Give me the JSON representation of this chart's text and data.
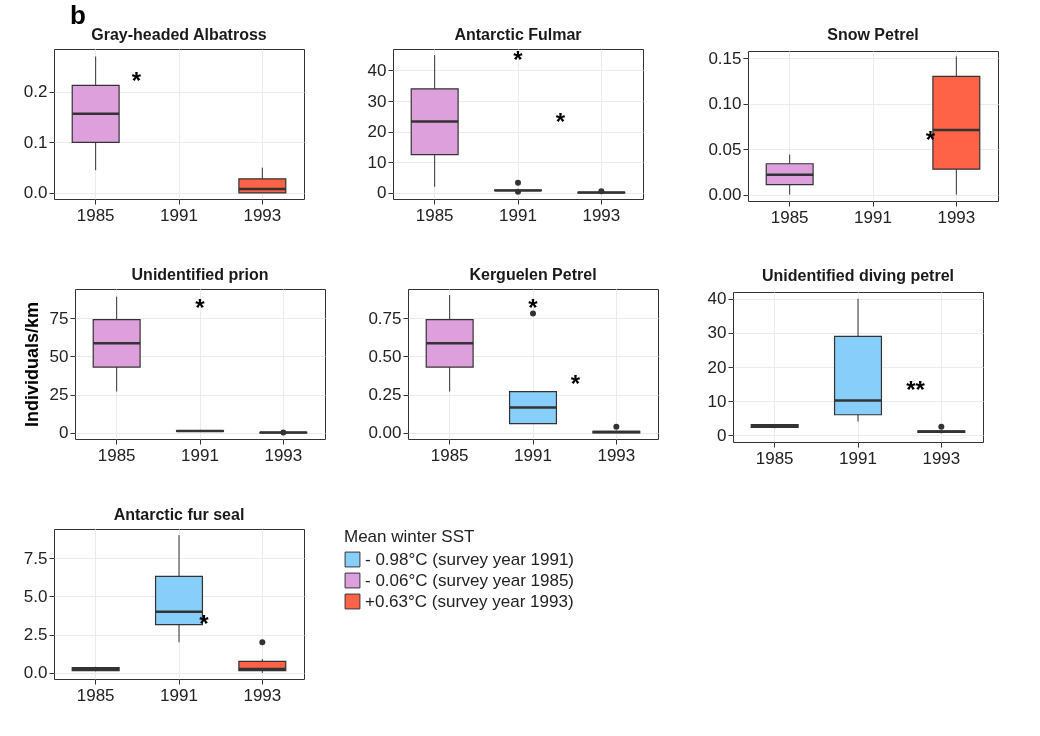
{
  "chart_data": [
    {
      "type": "box",
      "title": "Gray-headed Albatross",
      "categories": [
        "1985",
        "1991",
        "1993"
      ],
      "ylim": [
        -0.012,
        0.285
      ],
      "yticks": [
        {
          "value": 0,
          "label": "0.0"
        },
        0.1,
        0.2
      ],
      "grid": true,
      "annotations": [
        "b",
        "*"
      ],
      "series": [
        {
          "color": "#dda0dd",
          "boxes": [
            {
              "low": 0.045,
              "q1": 0.1,
              "median": 0.157,
              "q3": 0.213,
              "high": 0.27
            },
            null,
            null
          ]
        },
        {
          "color": "#ff6347",
          "boxes": [
            null,
            null,
            {
              "low": 0,
              "q1": 0,
              "median": 0.008,
              "q3": 0.028,
              "high": 0.05
            }
          ]
        }
      ]
    },
    {
      "type": "box",
      "title": "Antarctic Fulmar",
      "categories": [
        "1985",
        "1991",
        "1993"
      ],
      "ylim": [
        -2,
        47
      ],
      "yticks": [
        0,
        10,
        20,
        30,
        40
      ],
      "grid": true,
      "annotations": [
        "*",
        "*"
      ],
      "series": [
        {
          "color": "#87cefa",
          "boxes": [
            null,
            {
              "low": 0.5,
              "q1": 0.8,
              "median": 0.8,
              "q3": 0.9,
              "high": 1,
              "outliers": [
                3.3,
                0.4
              ]
            },
            null
          ]
        },
        {
          "color": "#dda0dd",
          "boxes": [
            {
              "low": 2,
              "q1": 12.5,
              "median": 23.3,
              "q3": 34,
              "high": 45
            },
            null,
            null
          ]
        },
        {
          "color": "#ff6347",
          "boxes": [
            null,
            null,
            {
              "low": 0,
              "q1": 0,
              "median": 0.1,
              "q3": 0.2,
              "high": 0.3,
              "outliers": [
                0.5
              ]
            }
          ]
        }
      ]
    },
    {
      "type": "box",
      "title": "Snow Petrel",
      "categories": [
        "1985",
        "1991",
        "1993"
      ],
      "ylim": [
        -0.007,
        0.158
      ],
      "yticks": [
        {
          "value": 0,
          "label": "0.00"
        },
        {
          "value": 0.05,
          "label": "0.05"
        },
        {
          "value": 0.1,
          "label": "0.10"
        },
        {
          "value": 0.15,
          "label": "0.15"
        }
      ],
      "grid": true,
      "annotations": [
        "*"
      ],
      "series": [
        {
          "color": "#dda0dd",
          "boxes": [
            {
              "low": 0,
              "q1": 0.011,
              "median": 0.022,
              "q3": 0.034,
              "high": 0.044
            },
            null,
            null
          ]
        },
        {
          "color": "#ff6347",
          "boxes": [
            null,
            null,
            {
              "low": 0,
              "q1": 0.028,
              "median": 0.071,
              "q3": 0.13,
              "high": 0.152
            }
          ]
        }
      ]
    },
    {
      "type": "box",
      "title": "Unidentified prion",
      "ylabel": "Individuals/km",
      "categories": [
        "1985",
        "1991",
        "1993"
      ],
      "ylim": [
        -4,
        94
      ],
      "yticks": [
        0,
        25,
        50,
        75
      ],
      "grid": true,
      "annotations": [
        "*"
      ],
      "series": [
        {
          "color": "#87cefa",
          "boxes": [
            null,
            {
              "low": 0.5,
              "q1": 1,
              "median": 1.2,
              "q3": 1.5,
              "high": 2
            },
            null
          ]
        },
        {
          "color": "#dda0dd",
          "boxes": [
            {
              "low": 27,
              "q1": 43,
              "median": 58.5,
              "q3": 74,
              "high": 89
            },
            null,
            null
          ]
        },
        {
          "color": "#ff6347",
          "boxes": [
            null,
            null,
            {
              "low": 0,
              "q1": 0,
              "median": 0.2,
              "q3": 0.3,
              "high": 0.5,
              "outliers": [
                0.3
              ]
            }
          ]
        }
      ]
    },
    {
      "type": "box",
      "title": "Kerguelen Petrel",
      "categories": [
        "1985",
        "1991",
        "1993"
      ],
      "ylim": [
        -0.04,
        0.94
      ],
      "yticks": [
        {
          "value": 0,
          "label": "0.00"
        },
        0.25,
        {
          "value": 0.5,
          "label": "0.50"
        },
        0.75
      ],
      "grid": true,
      "annotations": [
        "*",
        "*"
      ],
      "series": [
        {
          "color": "#87cefa",
          "boxes": [
            null,
            {
              "low": 0.06,
              "q1": 0.06,
              "median": 0.165,
              "q3": 0.27,
              "high": 0.27,
              "outliers": [
                0.78
              ]
            },
            null
          ]
        },
        {
          "color": "#dda0dd",
          "boxes": [
            {
              "low": 0.27,
              "q1": 0.43,
              "median": 0.585,
              "q3": 0.74,
              "high": 0.9
            },
            null,
            null
          ]
        },
        {
          "color": "#ff6347",
          "boxes": [
            null,
            null,
            {
              "low": 0,
              "q1": 0,
              "median": 0.005,
              "q3": 0.01,
              "high": 0.015,
              "outliers": [
                0.04
              ]
            }
          ]
        }
      ]
    },
    {
      "type": "box",
      "title": "Unidentified diving petrel",
      "categories": [
        "1985",
        "1991",
        "1993"
      ],
      "ylim": [
        -2,
        42
      ],
      "yticks": [
        0,
        10,
        20,
        30,
        40
      ],
      "grid": true,
      "annotations": [
        "**"
      ],
      "series": [
        {
          "color": "#87cefa",
          "boxes": [
            null,
            {
              "low": 4,
              "q1": 6,
              "median": 10.2,
              "q3": 29,
              "high": 40
            },
            null
          ]
        },
        {
          "color": "#dda0dd",
          "boxes": [
            {
              "low": 2,
              "q1": 2.3,
              "median": 2.7,
              "q3": 3.1,
              "high": 3.3
            },
            null,
            null
          ]
        },
        {
          "color": "#ff6347",
          "boxes": [
            null,
            null,
            {
              "low": 0.5,
              "q1": 0.8,
              "median": 1,
              "q3": 1.3,
              "high": 1.5,
              "outliers": [
                2.5
              ]
            }
          ]
        }
      ]
    },
    {
      "type": "box",
      "title": "Antarctic fur seal",
      "categories": [
        "1985",
        "1991",
        "1993"
      ],
      "ylim": [
        -0.4,
        9.4
      ],
      "yticks": [
        {
          "value": 0,
          "label": "0.0"
        },
        2.5,
        {
          "value": 5,
          "label": "5.0"
        },
        7.5
      ],
      "grid": true,
      "legend": "right",
      "legend_title": "Mean winter SST",
      "annotations": [
        "*"
      ],
      "series": [
        {
          "name": "- 0.98°C (survey year 1991)",
          "color": "#87cefa",
          "boxes": [
            null,
            {
              "low": 2,
              "q1": 3.15,
              "median": 4,
              "q3": 6.3,
              "high": 9
            },
            null
          ]
        },
        {
          "name": "- 0.06°C (survey year 1985)",
          "color": "#dda0dd",
          "boxes": [
            {
              "low": 0.1,
              "q1": 0.15,
              "median": 0.25,
              "q3": 0.35,
              "high": 0.4
            },
            null,
            null
          ]
        },
        {
          "name": "+0.63°C (survey year 1993)",
          "color": "#ff6347",
          "boxes": [
            null,
            null,
            {
              "low": 0,
              "q1": 0.15,
              "median": 0.25,
              "q3": 0.75,
              "high": 0.9,
              "outliers": [
                2
              ]
            }
          ]
        }
      ]
    }
  ]
}
